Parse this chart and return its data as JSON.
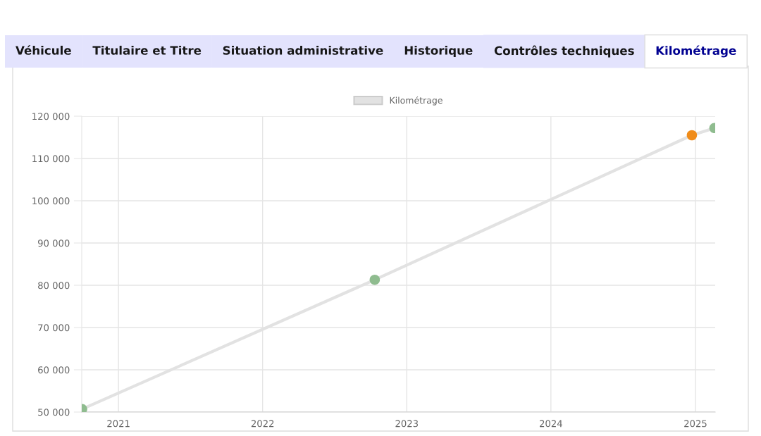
{
  "chart_data": {
    "type": "line",
    "annotations": [
      "Véhicule",
      "Titulaire et Titre",
      "Situation administrative",
      "Historique",
      "Contrôles techniques",
      "Kilométrage"
    ],
    "x": [
      "2020-10-01",
      "2022-10-12",
      "2024-12-23",
      "2025-02-18"
    ],
    "series": [
      {
        "name": "Kilométrage",
        "color": "#e2e2e2",
        "colors": [
          "#8fbc8f",
          "#8fbc8f",
          "#f08c1a",
          "#8fbc8f"
        ],
        "values": [
          50700,
          81300,
          115500,
          117200
        ]
      }
    ],
    "xlim": [
      "2020-09-30",
      "2025-02-20"
    ],
    "xticks": [
      "2021",
      "2022",
      "2023",
      "2024",
      "2025"
    ],
    "ylim": [
      50000,
      120000
    ],
    "yticks": [
      {
        "value": 50000,
        "label": "50 000"
      },
      {
        "value": 60000,
        "label": "60 000"
      },
      {
        "value": 70000,
        "label": "70 000"
      },
      {
        "value": 80000,
        "label": "80 000"
      },
      {
        "value": 90000,
        "label": "90 000"
      },
      {
        "value": 100000,
        "label": "100 000"
      },
      {
        "value": 110000,
        "label": "110 000"
      },
      {
        "value": 120000,
        "label": "120 000"
      }
    ],
    "grid": true,
    "legend": "top",
    "marker": "circle",
    "line_style": "solid"
  }
}
